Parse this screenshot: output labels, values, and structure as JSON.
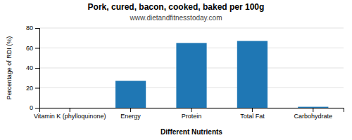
{
  "chart_data": {
    "type": "bar",
    "title": "Pork, cured, bacon, cooked, baked per 100g",
    "subtitle": "www.dietandfitnesstoday.com",
    "xlabel": "Different Nutrients",
    "ylabel": "Percentage of RDI (%)",
    "categories": [
      "Vitamin K (phylloquinone)",
      "Energy",
      "Protein",
      "Total Fat",
      "Carbohydrate"
    ],
    "values": [
      0,
      27,
      65,
      67,
      1
    ],
    "ylim": [
      0,
      80
    ],
    "yticks": [
      0,
      20,
      40,
      60,
      80
    ],
    "grid": true
  }
}
